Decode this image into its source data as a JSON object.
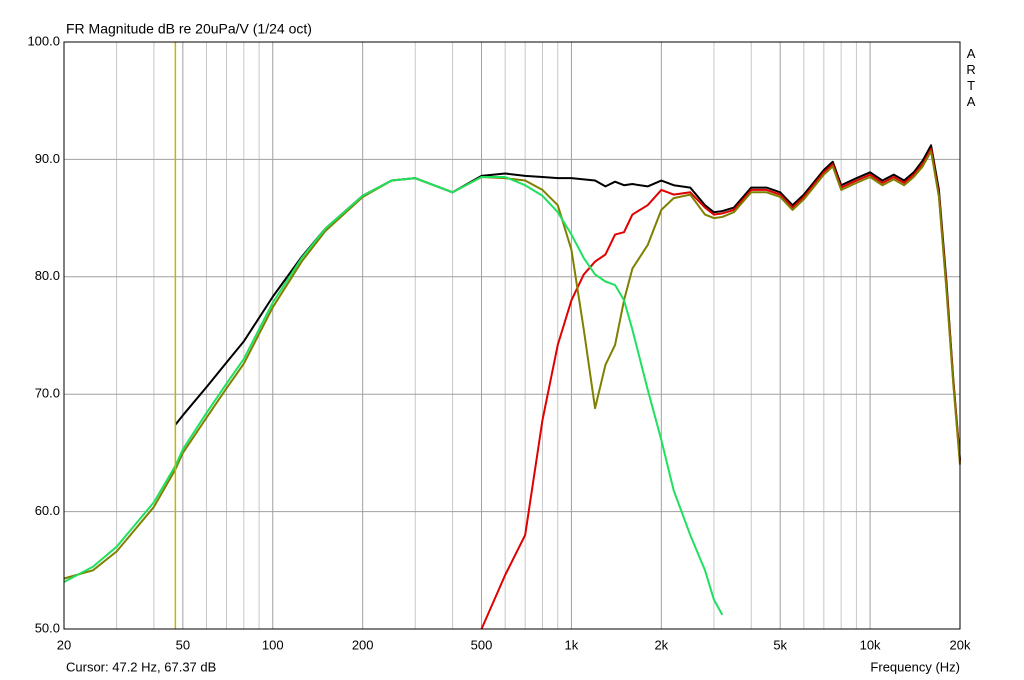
{
  "chart_data": {
    "type": "line",
    "title": "FR Magnitude dB re 20uPa/V (1/24 oct)",
    "brand": "ARTA",
    "cursor_label": "Cursor: 47.2 Hz, 67.37 dB",
    "cursor": {
      "x": 47.2,
      "color": "#c8b400"
    },
    "x_label": "Frequency (Hz)",
    "xscale": "log",
    "grid": true,
    "xlim": [
      20,
      20000
    ],
    "ylim": [
      50,
      100
    ],
    "xticks": [
      20,
      50,
      100,
      200,
      500,
      {
        "value": 1000,
        "label": "1k"
      },
      {
        "value": 2000,
        "label": "2k"
      },
      {
        "value": 5000,
        "label": "5k"
      },
      {
        "value": 10000,
        "label": "10k"
      },
      {
        "value": 20000,
        "label": "20k"
      }
    ],
    "xminor_ticks": [
      30,
      40,
      60,
      70,
      80,
      90,
      300,
      400,
      600,
      700,
      800,
      900,
      3000,
      4000,
      6000,
      7000,
      8000,
      9000
    ],
    "yticks": [
      {
        "value": 50,
        "label": "50.0"
      },
      {
        "value": 60,
        "label": "60.0"
      },
      {
        "value": 70,
        "label": "70.0"
      },
      {
        "value": 80,
        "label": "80.0"
      },
      {
        "value": 90,
        "label": "90.0"
      },
      {
        "value": 100,
        "label": "100.0"
      }
    ],
    "x": [
      20,
      25,
      30,
      40,
      47.2,
      50,
      60,
      70,
      80,
      100,
      125,
      150,
      200,
      250,
      300,
      400,
      500,
      600,
      700,
      800,
      900,
      1000,
      1100,
      1200,
      1300,
      1400,
      1500,
      1600,
      1800,
      2000,
      2200,
      2500,
      2800,
      3000,
      3200,
      3500,
      4000,
      4500,
      5000,
      5500,
      6000,
      7000,
      7500,
      8000,
      9000,
      10000,
      11000,
      12000,
      13000,
      14000,
      15000,
      16000,
      17000,
      18000,
      19000,
      20000
    ],
    "series": [
      {
        "color": "#000000",
        "values": [
          null,
          null,
          null,
          null,
          67.4,
          68.2,
          70.6,
          72.7,
          74.5,
          78.3,
          81.7,
          84.1,
          86.9,
          88.2,
          88.4,
          87.2,
          88.6,
          88.8,
          88.6,
          88.5,
          88.4,
          88.4,
          88.3,
          88.2,
          87.7,
          88.1,
          87.8,
          87.9,
          87.7,
          88.2,
          87.8,
          87.6,
          86.1,
          85.5,
          85.6,
          85.9,
          87.6,
          87.6,
          87.2,
          86.1,
          87.0,
          89.1,
          89.8,
          87.8,
          88.4,
          88.9,
          88.2,
          88.7,
          88.2,
          88.9,
          89.9,
          91.2,
          87.4,
          79.7,
          71.2,
          64.4
        ]
      },
      {
        "color": "#e00000",
        "values": [
          null,
          null,
          null,
          null,
          null,
          null,
          null,
          null,
          null,
          null,
          null,
          null,
          null,
          null,
          null,
          null,
          50.0,
          54.6,
          58.0,
          67.8,
          74.2,
          78.0,
          80.2,
          81.3,
          81.9,
          83.6,
          83.8,
          85.3,
          86.1,
          87.4,
          87.0,
          87.2,
          85.9,
          85.3,
          85.4,
          85.7,
          87.4,
          87.4,
          87.0,
          85.9,
          86.8,
          88.9,
          89.6,
          87.6,
          88.2,
          88.7,
          88.0,
          88.5,
          88.0,
          88.7,
          89.6,
          90.9,
          87.0,
          79.3,
          71.0,
          64.2
        ]
      },
      {
        "color": "#808000",
        "values": [
          54.3,
          55.0,
          56.6,
          60.4,
          63.6,
          65.0,
          68.0,
          70.5,
          72.6,
          77.4,
          81.3,
          83.9,
          86.8,
          88.2,
          88.4,
          87.2,
          88.5,
          88.4,
          88.2,
          87.4,
          86.1,
          82.3,
          75.5,
          68.8,
          72.5,
          74.2,
          78.0,
          80.7,
          82.7,
          85.7,
          86.7,
          87.0,
          85.3,
          85.0,
          85.1,
          85.5,
          87.2,
          87.2,
          86.8,
          85.7,
          86.6,
          88.7,
          89.4,
          87.4,
          88.0,
          88.5,
          87.8,
          88.3,
          87.8,
          88.5,
          89.4,
          90.7,
          86.8,
          79.0,
          70.8,
          64.0
        ]
      },
      {
        "color": "#20e060",
        "values": [
          54.0,
          55.3,
          57.0,
          60.8,
          63.9,
          65.3,
          68.4,
          70.9,
          73.0,
          77.8,
          81.6,
          84.1,
          86.9,
          88.2,
          88.4,
          87.2,
          88.5,
          88.5,
          87.8,
          86.9,
          85.5,
          83.6,
          81.6,
          80.2,
          79.6,
          79.3,
          78.0,
          75.5,
          70.4,
          66.1,
          61.8,
          58.0,
          55.0,
          52.5,
          51.2,
          null,
          null,
          null,
          null,
          null,
          null,
          null,
          null,
          null,
          null,
          null,
          null,
          null,
          null,
          null,
          null,
          null,
          null,
          null,
          null,
          null
        ]
      }
    ]
  }
}
